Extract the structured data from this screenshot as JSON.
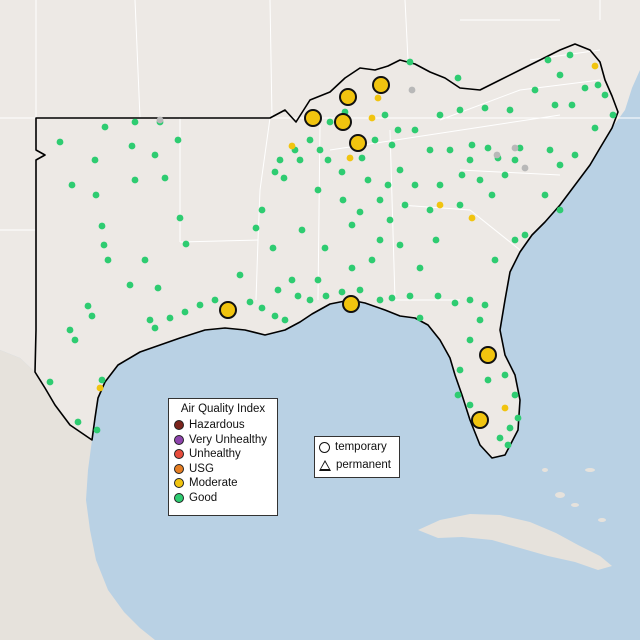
{
  "colors": {
    "water": "#b9d1e4",
    "land": "#ede9e5",
    "mexico_land": "#e6e2dc",
    "state_line": "#ffffff",
    "region_outline": "#000000",
    "good": "#2ecc71",
    "moderate": "#f1c40f",
    "usg": "#e67e22",
    "unhealthy": "#e74c3c",
    "very_unhealthy": "#8e44ad",
    "hazardous": "#7b241c",
    "no_data": "#b8b8b8"
  },
  "aqi_legend": {
    "title": "Air Quality Index",
    "items": [
      {
        "label": "Hazardous",
        "color": "#7b241c"
      },
      {
        "label": "Very Unhealthy",
        "color": "#8e44ad"
      },
      {
        "label": "Unhealthy",
        "color": "#e74c3c"
      },
      {
        "label": "USG",
        "color": "#e67e22"
      },
      {
        "label": "Moderate",
        "color": "#f1c40f"
      },
      {
        "label": "Good",
        "color": "#2ecc71"
      }
    ]
  },
  "type_legend": {
    "items": [
      {
        "label": "temporary",
        "shape": "circle-icon"
      },
      {
        "label": "permanent",
        "shape": "triangle-icon"
      }
    ]
  }
}
